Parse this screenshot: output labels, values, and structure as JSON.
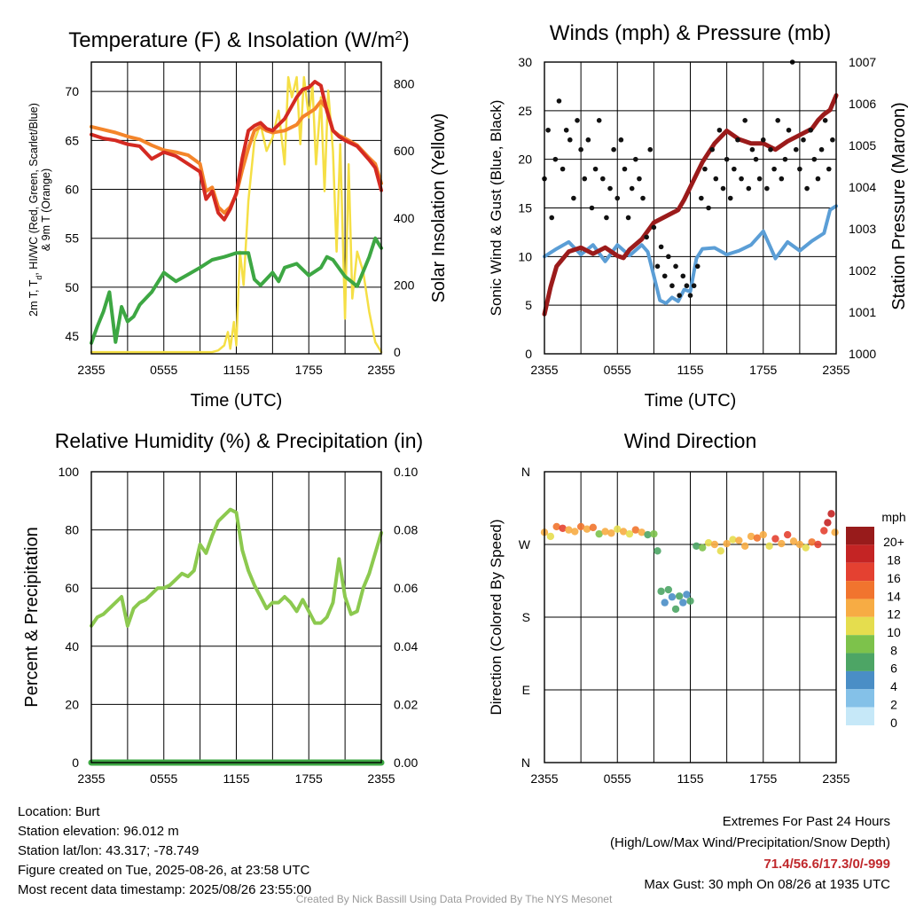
{
  "chart_data": [
    {
      "type": "line",
      "title": "Temperature (F) & Insolation (W/m",
      "title_sup": "2",
      "title_end": ")",
      "xlabel": "Time (UTC)",
      "ylabel_lines": [
        "2m T, T, HI/WC (Red, Green, Scarlet/Blue)",
        "& 9m T (Orange)"
      ],
      "ylabel_sub": "d",
      "y2label": "Solar Insolation (Yellow)",
      "x_ticks": [
        "2355",
        "0555",
        "1155",
        "1755",
        "2355"
      ],
      "x_range_hours": [
        0,
        24
      ],
      "ylim": [
        43.2,
        73
      ],
      "y_ticks": [
        45,
        50,
        55,
        60,
        65,
        70
      ],
      "y2lim": [
        -5,
        865
      ],
      "y2_ticks": [
        0,
        200,
        400,
        600,
        800
      ],
      "series": [
        {
          "color": "#f4852a",
          "axis": "y",
          "x": [
            0,
            1,
            2,
            3,
            4,
            5,
            6,
            7,
            8,
            9,
            9.5,
            10,
            10.5,
            11,
            11.5,
            12,
            12.5,
            13,
            13.5,
            14,
            14.5,
            15,
            16,
            17,
            17.5,
            18,
            18.5,
            19,
            19.5,
            20,
            20.5,
            21,
            22,
            23,
            23.5,
            24
          ],
          "values": [
            66.4,
            66.1,
            65.8,
            65.4,
            65.1,
            64.5,
            64.0,
            63.8,
            63.5,
            62.6,
            59.8,
            60.2,
            58.2,
            57.6,
            58.2,
            59.5,
            62.0,
            64.2,
            66.0,
            66.4,
            66.0,
            65.8,
            66.0,
            66.6,
            67.4,
            67.8,
            68.2,
            69.0,
            68.2,
            66.0,
            65.5,
            65.2,
            64.5,
            63.2,
            62.6,
            60.6
          ]
        },
        {
          "color": "#d42a22",
          "axis": "y",
          "x": [
            0,
            1,
            2,
            3,
            4,
            5,
            6,
            7,
            8,
            9,
            9.5,
            10,
            10.5,
            11,
            11.5,
            12,
            12.5,
            13,
            13.5,
            14,
            14.5,
            15,
            16,
            17,
            17.5,
            18,
            18.5,
            19,
            19.5,
            20,
            20.5,
            21,
            22,
            23,
            23.5,
            24
          ],
          "values": [
            65.6,
            65.2,
            65.0,
            64.6,
            64.4,
            63.1,
            63.8,
            63.4,
            62.6,
            61.8,
            59.0,
            59.8,
            57.6,
            56.9,
            58.0,
            59.6,
            63.2,
            66.0,
            66.5,
            66.8,
            66.2,
            66.0,
            67.2,
            69.4,
            70.2,
            70.4,
            71.0,
            70.6,
            68.0,
            66.0,
            65.4,
            65.0,
            64.4,
            63.0,
            62.2,
            59.9
          ]
        },
        {
          "color": "#3da743",
          "axis": "y",
          "x": [
            0,
            0.5,
            1,
            1.5,
            2,
            2.5,
            3,
            3.5,
            4,
            5,
            6,
            7,
            8,
            9,
            10,
            11,
            12,
            13,
            13.5,
            14,
            15,
            15.5,
            16,
            17,
            18,
            19,
            19.5,
            20,
            21,
            22,
            23,
            23.5,
            24
          ],
          "values": [
            44.3,
            46.0,
            47.5,
            49.5,
            44.4,
            48.0,
            46.5,
            47.0,
            48.2,
            49.5,
            51.5,
            50.6,
            51.3,
            52.0,
            52.8,
            53.1,
            53.5,
            53.5,
            50.8,
            50.2,
            51.5,
            50.6,
            52.0,
            52.4,
            51.2,
            52.0,
            53.1,
            52.8,
            51.1,
            50.1,
            53.1,
            55.0,
            54.0
          ]
        },
        {
          "color": "#f5df45",
          "axis": "y2",
          "x": [
            0,
            1,
            2,
            3,
            4,
            5,
            6,
            7,
            8,
            9,
            10,
            10.5,
            11,
            11.3,
            11.5,
            11.8,
            12,
            12.3,
            12.6,
            13,
            13.5,
            14,
            14.5,
            15,
            15.5,
            16,
            16.3,
            16.6,
            17,
            17.3,
            17.6,
            18,
            18.3,
            18.6,
            19,
            19.3,
            19.6,
            20,
            20.3,
            20.6,
            21,
            21.3,
            21.6,
            22,
            22.5,
            23,
            23.5,
            24
          ],
          "values": [
            0,
            0,
            0,
            0,
            0,
            0,
            0,
            0,
            0,
            0,
            0,
            5,
            20,
            60,
            10,
            90,
            20,
            300,
            200,
            450,
            630,
            680,
            600,
            640,
            720,
            560,
            820,
            760,
            820,
            620,
            820,
            700,
            800,
            560,
            760,
            480,
            780,
            600,
            300,
            620,
            100,
            560,
            160,
            300,
            240,
            120,
            30,
            0
          ]
        }
      ]
    },
    {
      "type": "line",
      "title": "Winds (mph) & Pressure (mb)",
      "xlabel": "Time (UTC)",
      "ylabel": "Sonic Wind & Gust (Blue, Black)",
      "y2label": "Station Pressure (Maroon)",
      "x_ticks": [
        "2355",
        "0555",
        "1155",
        "1755",
        "2355"
      ],
      "x_range_hours": [
        0,
        24
      ],
      "ylim": [
        0,
        30
      ],
      "y_ticks": [
        0,
        5,
        10,
        15,
        20,
        25,
        30
      ],
      "y2lim": [
        1000,
        1007
      ],
      "y2_ticks": [
        1000,
        1001,
        1002,
        1003,
        1004,
        1005,
        1006,
        1007
      ],
      "series": [
        {
          "color": "#5b9ed6",
          "axis": "y",
          "x": [
            0,
            1,
            2,
            3,
            4,
            5,
            6,
            7,
            8,
            8.5,
            9,
            9.5,
            10,
            10.5,
            11,
            11.5,
            12,
            12.5,
            13,
            14,
            15,
            16,
            17,
            18,
            19,
            20,
            21,
            22,
            23,
            23.5,
            24
          ],
          "values": [
            10,
            10.8,
            11.5,
            10.2,
            11.2,
            9.5,
            11.2,
            10.1,
            11.2,
            10.5,
            8.0,
            5.5,
            5.2,
            5.8,
            5.4,
            6.6,
            6.4,
            9.8,
            10.8,
            10.9,
            10.2,
            10.6,
            11.2,
            12.6,
            9.8,
            11.5,
            10.6,
            11.6,
            12.4,
            14.8,
            15.2
          ]
        },
        {
          "color": "#9b1b1b",
          "axis": "y2",
          "x": [
            0,
            0.5,
            1,
            2,
            3,
            4,
            5,
            6,
            6.5,
            7,
            8,
            9,
            10,
            11,
            11.5,
            12,
            13,
            14,
            15,
            16,
            17,
            18,
            19,
            20,
            21,
            22,
            22.5,
            23,
            23.5,
            24
          ],
          "values": [
            1000.95,
            1001.6,
            1002.1,
            1002.45,
            1002.55,
            1002.4,
            1002.55,
            1002.35,
            1002.3,
            1002.5,
            1002.75,
            1003.15,
            1003.3,
            1003.45,
            1003.7,
            1004.0,
            1004.6,
            1005.05,
            1005.35,
            1005.15,
            1005.05,
            1005.05,
            1004.9,
            1005.1,
            1005.25,
            1005.4,
            1005.6,
            1005.75,
            1005.85,
            1006.2
          ]
        },
        {
          "color": "#111111",
          "axis": "y",
          "scatter": true,
          "x": [
            0,
            0.3,
            0.6,
            0.9,
            1.2,
            1.5,
            1.8,
            2.1,
            2.4,
            2.7,
            3.0,
            3.3,
            3.6,
            3.9,
            4.2,
            4.5,
            4.8,
            5.1,
            5.4,
            5.7,
            6.0,
            6.3,
            6.6,
            6.9,
            7.2,
            7.5,
            7.8,
            8.1,
            8.4,
            8.7,
            9.0,
            9.3,
            9.6,
            9.9,
            10.2,
            10.5,
            10.8,
            11.1,
            11.4,
            11.7,
            12.0,
            12.3,
            12.6,
            12.9,
            13.2,
            13.5,
            13.8,
            14.1,
            14.4,
            14.7,
            15.0,
            15.3,
            15.6,
            15.9,
            16.2,
            16.5,
            16.8,
            17.1,
            17.4,
            17.7,
            18.0,
            18.3,
            18.6,
            18.9,
            19.2,
            19.5,
            19.8,
            20.1,
            20.4,
            20.7,
            21.0,
            21.3,
            21.6,
            21.9,
            22.2,
            22.5,
            22.8,
            23.1,
            23.4,
            23.7
          ],
          "values": [
            18,
            23,
            14,
            20,
            26,
            19,
            23,
            22,
            16,
            24,
            21,
            18,
            22,
            15,
            19,
            24,
            18,
            14,
            17,
            21,
            16,
            22,
            19,
            14,
            17,
            20,
            18,
            16,
            12,
            21,
            13,
            9,
            11,
            8,
            10,
            7,
            9,
            6,
            8,
            7,
            6,
            7,
            9,
            16,
            19,
            15,
            21,
            18,
            23,
            17,
            20,
            16,
            19,
            22,
            18,
            24,
            17,
            21,
            20,
            18,
            22,
            17,
            21,
            19,
            24,
            18,
            20,
            23,
            30,
            21,
            19,
            22,
            17,
            23,
            20,
            18,
            21,
            24,
            19,
            22
          ]
        }
      ]
    },
    {
      "type": "line",
      "title": "Relative Humidity (%) & Precipitation (in)",
      "ylabel": "Percent & Precipitation",
      "x_ticks": [
        "2355",
        "0555",
        "1155",
        "1755",
        "2355"
      ],
      "x_range_hours": [
        0,
        24
      ],
      "ylim": [
        0,
        100
      ],
      "y_ticks": [
        0,
        20,
        40,
        60,
        80,
        100
      ],
      "y2lim": [
        0,
        0.1
      ],
      "y2_ticks": [
        "0.00",
        "0.02",
        "0.04",
        "0.06",
        "0.08",
        "0.10"
      ],
      "series": [
        {
          "color": "#8cc94f",
          "axis": "y",
          "x": [
            0,
            0.5,
            1,
            1.5,
            2,
            2.5,
            3,
            3.5,
            4,
            4.5,
            5,
            5.5,
            6,
            6.5,
            7,
            7.5,
            8,
            8.5,
            9,
            9.5,
            10,
            10.5,
            11,
            11.5,
            12,
            12.5,
            13,
            13.5,
            14,
            14.5,
            15,
            15.5,
            16,
            16.5,
            17,
            17.5,
            18,
            18.5,
            19,
            19.5,
            20,
            20.5,
            21,
            21.5,
            22,
            22.5,
            23,
            23.5,
            24
          ],
          "values": [
            47,
            50,
            51,
            53,
            55,
            57,
            47,
            53,
            55,
            56,
            58,
            60,
            60,
            61,
            63,
            65,
            64,
            66,
            75,
            72,
            78,
            83,
            85,
            87,
            86,
            73,
            66,
            61,
            57,
            53,
            55,
            55,
            57,
            55,
            52,
            56,
            52,
            48,
            48,
            50,
            55,
            70,
            57,
            51,
            52,
            60,
            65,
            72,
            79
          ]
        },
        {
          "color": "#3da743",
          "axis": "y2",
          "x": [
            0,
            24
          ],
          "values": [
            0,
            0
          ]
        }
      ]
    },
    {
      "type": "scatter",
      "title": "Wind Direction",
      "ylabel": "Direction (Colored By Speed)",
      "x_ticks": [
        "2355",
        "0555",
        "1155",
        "1755",
        "2355"
      ],
      "x_range_hours": [
        0,
        24
      ],
      "ylim": [
        0,
        360
      ],
      "y_ticks": [
        {
          "deg": 0,
          "label": "N"
        },
        {
          "deg": 90,
          "label": "E"
        },
        {
          "deg": 180,
          "label": "S"
        },
        {
          "deg": 270,
          "label": "W"
        },
        {
          "deg": 360,
          "label": "N"
        }
      ],
      "legend_unit": "mph",
      "legend": [
        {
          "label": "0",
          "color": "#c6e8f8"
        },
        {
          "label": "2",
          "color": "#84c1e8"
        },
        {
          "label": "4",
          "color": "#4a8ec6"
        },
        {
          "label": "6",
          "color": "#4da565"
        },
        {
          "label": "8",
          "color": "#7dc24b"
        },
        {
          "label": "10",
          "color": "#e5dd4e"
        },
        {
          "label": "12",
          "color": "#f7ac44"
        },
        {
          "label": "14",
          "color": "#f1742e"
        },
        {
          "label": "16",
          "color": "#e44131"
        },
        {
          "label": "18",
          "color": "#c42424"
        },
        {
          "label": "20+",
          "color": "#981b1b"
        }
      ],
      "points": {
        "x": [
          0,
          0.5,
          1,
          1.5,
          2,
          2.5,
          3,
          3.5,
          4,
          4.5,
          5,
          5.5,
          6,
          6.5,
          7,
          7.5,
          8,
          8.5,
          9,
          9.3,
          9.6,
          9.9,
          10.2,
          10.5,
          10.8,
          11.1,
          11.4,
          11.7,
          12,
          12.5,
          13,
          13.5,
          14,
          14.5,
          15,
          15.5,
          16,
          16.5,
          17,
          17.5,
          18,
          18.5,
          19,
          19.5,
          20,
          20.5,
          21,
          21.5,
          22,
          22.5,
          23,
          23.3,
          23.6,
          23.9
        ],
        "direction": [
          285,
          280,
          292,
          290,
          288,
          286,
          292,
          289,
          291,
          283,
          286,
          284,
          289,
          286,
          283,
          288,
          285,
          282,
          283,
          262,
          212,
          198,
          214,
          205,
          190,
          206,
          198,
          208,
          200,
          268,
          266,
          272,
          270,
          262,
          271,
          276,
          275,
          268,
          280,
          278,
          282,
          268,
          277,
          271,
          282,
          274,
          270,
          266,
          273,
          270,
          287,
          297,
          308,
          285
        ],
        "speed": [
          12,
          10,
          14,
          16,
          12,
          12,
          14,
          11,
          14,
          8,
          12,
          11,
          10,
          12,
          10,
          13,
          12,
          6,
          8,
          6,
          5,
          4,
          6,
          4,
          5,
          6,
          3,
          4,
          5,
          6,
          8,
          10,
          11,
          9,
          11,
          10,
          12,
          11,
          12,
          14,
          12,
          10,
          15,
          12,
          16,
          11,
          12,
          10,
          14,
          16,
          16,
          18,
          17,
          12
        ]
      }
    }
  ],
  "footer": {
    "location": "Location: Burt",
    "elevation": "Station elevation: 96.012 m",
    "latlon": "Station lat/lon: 43.317; -78.749",
    "created": "Figure created on Tue, 2025-08-26, at 23:58 UTC",
    "recent": "Most recent data timestamp: 2025/08/26 23:55:00",
    "extremes_title": "Extremes For Past 24 Hours",
    "extremes_fields": "(High/Low/Max Wind/Precipitation/Snow Depth)",
    "extremes_values": "71.4/56.6/17.3/0/-999",
    "max_gust": "Max Gust: 30 mph On 08/26 at 1935 UTC",
    "credit": "Created By Nick Bassill Using Data Provided By The NYS Mesonet"
  },
  "colors": {
    "extremes": "#c0282c",
    "credit": "#9a9a9a"
  }
}
